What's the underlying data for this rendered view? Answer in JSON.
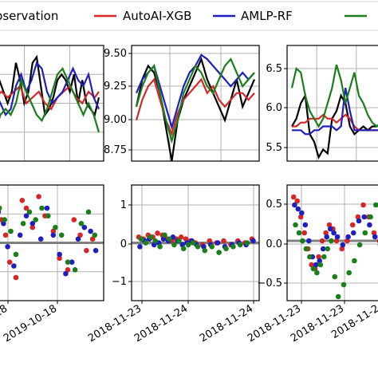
{
  "legend": {
    "items": [
      {
        "label": "Observation",
        "color": "#000000"
      },
      {
        "label": "AutoAI-XGB",
        "color": "#d62728"
      },
      {
        "label": "AMLP-RF",
        "color": "#1f1fbf"
      },
      {
        "label": "",
        "color": "#1a7f1a"
      }
    ]
  },
  "chart_data": [
    {
      "panel": "top-left",
      "type": "line",
      "yticks": [],
      "ylim": [
        8.6,
        9.6
      ],
      "series": [
        {
          "name": "Observation",
          "color": "#000000",
          "x": [
            0,
            0.04,
            0.08,
            0.12,
            0.16,
            0.2,
            0.24,
            0.28,
            0.32,
            0.36,
            0.4,
            0.44,
            0.48,
            0.52,
            0.56,
            0.6,
            0.64,
            0.68,
            0.72,
            0.76,
            0.8,
            0.84,
            0.88,
            0.92,
            0.96,
            1.0
          ],
          "y": [
            9.05,
            9.3,
            9.2,
            9.1,
            9.2,
            9.45,
            9.3,
            9.1,
            9.2,
            9.45,
            9.5,
            9.25,
            9.0,
            9.05,
            9.15,
            9.3,
            9.35,
            9.3,
            9.2,
            9.35,
            9.1,
            9.3,
            9.1,
            9.05,
            9.0,
            9.15
          ]
        },
        {
          "name": "AutoAI-XGB",
          "color": "#d62728",
          "x": [
            0,
            0.06,
            0.12,
            0.18,
            0.24,
            0.3,
            0.36,
            0.42,
            0.48,
            0.54,
            0.6,
            0.66,
            0.72,
            0.78,
            0.84,
            0.9,
            0.96,
            1.0
          ],
          "y": [
            9.15,
            9.2,
            9.15,
            9.2,
            9.25,
            9.1,
            9.15,
            9.2,
            9.1,
            9.05,
            9.15,
            9.2,
            9.25,
            9.15,
            9.1,
            9.2,
            9.15,
            9.2
          ]
        },
        {
          "name": "AMLP-RF",
          "color": "#1f1fbf",
          "x": [
            0,
            0.05,
            0.1,
            0.15,
            0.2,
            0.25,
            0.3,
            0.35,
            0.4,
            0.45,
            0.5,
            0.55,
            0.6,
            0.65,
            0.7,
            0.75,
            0.8,
            0.85,
            0.9,
            0.95,
            1.0
          ],
          "y": [
            9.2,
            9.1,
            9.0,
            9.05,
            9.25,
            9.35,
            9.2,
            9.3,
            9.45,
            9.4,
            9.2,
            9.1,
            9.15,
            9.2,
            9.3,
            9.4,
            9.3,
            9.25,
            9.35,
            9.15,
            9.05
          ]
        },
        {
          "name": "",
          "color": "#1a7f1a",
          "x": [
            0,
            0.05,
            0.1,
            0.15,
            0.2,
            0.25,
            0.3,
            0.35,
            0.4,
            0.45,
            0.5,
            0.55,
            0.6,
            0.65,
            0.7,
            0.75,
            0.8,
            0.85,
            0.9,
            0.95,
            1.0
          ],
          "y": [
            8.85,
            9.0,
            9.05,
            9.0,
            9.1,
            9.3,
            9.2,
            9.1,
            9.0,
            8.95,
            9.05,
            9.2,
            9.35,
            9.4,
            9.3,
            9.2,
            9.1,
            9.0,
            9.1,
            9.0,
            8.85
          ]
        }
      ]
    },
    {
      "panel": "top-center",
      "type": "line",
      "yticks": [
        "8.75",
        "9.00",
        "9.25",
        "9.50"
      ],
      "ylim": [
        8.7,
        9.55
      ],
      "series": [
        {
          "name": "Observation",
          "color": "#000000",
          "x": [
            0,
            0.05,
            0.1,
            0.15,
            0.2,
            0.25,
            0.3,
            0.35,
            0.4,
            0.45,
            0.5,
            0.55,
            0.6,
            0.65,
            0.7,
            0.75,
            0.8,
            0.85,
            0.9,
            0.95,
            1.0
          ],
          "y": [
            9.1,
            9.3,
            9.4,
            9.35,
            9.2,
            8.95,
            8.7,
            9.0,
            9.15,
            9.25,
            9.35,
            9.45,
            9.3,
            9.2,
            9.1,
            9.0,
            9.15,
            9.3,
            9.1,
            9.2,
            9.3
          ]
        },
        {
          "name": "AutoAI-XGB",
          "color": "#d62728",
          "x": [
            0,
            0.05,
            0.1,
            0.15,
            0.2,
            0.25,
            0.3,
            0.35,
            0.4,
            0.45,
            0.5,
            0.55,
            0.6,
            0.65,
            0.7,
            0.75,
            0.8,
            0.85,
            0.9,
            0.95,
            1.0
          ],
          "y": [
            9.0,
            9.15,
            9.25,
            9.3,
            9.15,
            9.0,
            8.9,
            9.05,
            9.15,
            9.2,
            9.25,
            9.3,
            9.2,
            9.25,
            9.15,
            9.1,
            9.15,
            9.2,
            9.2,
            9.15,
            9.2
          ]
        },
        {
          "name": "AMLP-RF",
          "color": "#1f1fbf",
          "x": [
            0,
            0.05,
            0.1,
            0.15,
            0.2,
            0.25,
            0.3,
            0.35,
            0.4,
            0.45,
            0.5,
            0.55,
            0.6,
            0.65,
            0.7,
            0.75,
            0.8,
            0.85,
            0.9,
            0.95,
            1.0
          ],
          "y": [
            9.2,
            9.3,
            9.35,
            9.4,
            9.25,
            9.1,
            8.95,
            9.1,
            9.25,
            9.35,
            9.4,
            9.48,
            9.45,
            9.4,
            9.35,
            9.3,
            9.25,
            9.3,
            9.35,
            9.3,
            9.35
          ]
        },
        {
          "name": "",
          "color": "#1a7f1a",
          "x": [
            0,
            0.05,
            0.1,
            0.15,
            0.2,
            0.25,
            0.3,
            0.35,
            0.4,
            0.45,
            0.5,
            0.55,
            0.6,
            0.65,
            0.7,
            0.75,
            0.8,
            0.85,
            0.9,
            0.95,
            1.0
          ],
          "y": [
            9.1,
            9.25,
            9.35,
            9.4,
            9.2,
            9.0,
            8.85,
            9.0,
            9.2,
            9.3,
            9.4,
            9.35,
            9.25,
            9.2,
            9.3,
            9.4,
            9.45,
            9.35,
            9.25,
            9.3,
            9.35
          ]
        }
      ]
    },
    {
      "panel": "top-right",
      "type": "line",
      "yticks": [
        "5.5",
        "6.0",
        "6.5"
      ],
      "ylim": [
        5.35,
        6.85
      ],
      "series": [
        {
          "name": "Observation",
          "color": "#000000",
          "x": [
            0,
            0.05,
            0.1,
            0.15,
            0.2,
            0.25,
            0.3,
            0.35,
            0.4,
            0.45,
            0.5,
            0.55,
            0.6,
            0.65,
            0.7,
            0.75,
            0.8,
            0.85,
            0.9,
            0.95,
            1.0
          ],
          "y": [
            5.8,
            5.9,
            6.1,
            6.2,
            5.7,
            5.6,
            5.4,
            5.5,
            5.45,
            5.9,
            6.0,
            6.2,
            6.1,
            5.8,
            5.7,
            5.75,
            5.8,
            5.75,
            5.8,
            5.8,
            5.85
          ]
        },
        {
          "name": "AutoAI-XGB",
          "color": "#d62728",
          "x": [
            0,
            0.05,
            0.1,
            0.15,
            0.2,
            0.25,
            0.3,
            0.35,
            0.4,
            0.45,
            0.5,
            0.55,
            0.6,
            0.65,
            0.7,
            0.75,
            0.8,
            0.85,
            0.9,
            0.95,
            1.0
          ],
          "y": [
            5.8,
            5.8,
            5.85,
            5.85,
            5.9,
            5.9,
            5.9,
            5.95,
            5.9,
            5.9,
            5.85,
            5.9,
            5.95,
            5.9,
            5.8,
            5.75,
            5.75,
            5.75,
            5.75,
            5.75,
            5.75
          ]
        },
        {
          "name": "AMLP-RF",
          "color": "#1f1fbf",
          "x": [
            0,
            0.05,
            0.1,
            0.15,
            0.2,
            0.25,
            0.3,
            0.35,
            0.4,
            0.45,
            0.5,
            0.55,
            0.6,
            0.65,
            0.7,
            0.75,
            0.8,
            0.85,
            0.9,
            0.95,
            1.0
          ],
          "y": [
            5.75,
            5.75,
            5.75,
            5.7,
            5.7,
            5.75,
            5.75,
            5.8,
            5.8,
            5.8,
            5.75,
            5.8,
            6.3,
            6.0,
            5.75,
            5.75,
            5.75,
            5.75,
            5.75,
            5.75,
            5.75
          ]
        },
        {
          "name": "",
          "color": "#1a7f1a",
          "x": [
            0,
            0.05,
            0.1,
            0.15,
            0.2,
            0.25,
            0.3,
            0.35,
            0.4,
            0.45,
            0.5,
            0.55,
            0.6,
            0.65,
            0.7,
            0.75,
            0.8,
            0.85,
            0.9,
            0.95,
            1.0
          ],
          "y": [
            6.3,
            6.55,
            6.5,
            6.2,
            6.0,
            5.9,
            5.8,
            5.9,
            6.1,
            6.3,
            6.6,
            6.4,
            6.1,
            6.3,
            6.5,
            6.2,
            6.1,
            5.95,
            5.85,
            5.8,
            5.85
          ]
        }
      ]
    },
    {
      "panel": "bottom-left",
      "type": "scatter",
      "yticks": [],
      "ylim": [
        -1.5,
        1.5
      ],
      "xticks": [
        "2019-10-18",
        "2019-10-18"
      ],
      "hline": 0,
      "series": [
        {
          "name": "AutoAI-XGB",
          "color": "#d62728",
          "x": [
            0.02,
            0.06,
            0.1,
            0.14,
            0.2,
            0.26,
            0.3,
            0.36,
            0.42,
            0.48,
            0.56,
            0.62,
            0.7,
            0.76,
            0.82,
            0.88,
            0.94
          ],
          "y": [
            1.2,
            0.6,
            0.2,
            -0.5,
            -0.9,
            1.1,
            0.9,
            0.4,
            1.2,
            0.7,
            0.3,
            -0.4,
            -0.7,
            0.6,
            0.2,
            -0.2,
            0.1
          ]
        },
        {
          "name": "AMLP-RF",
          "color": "#1f1fbf",
          "x": [
            0.03,
            0.08,
            0.12,
            0.18,
            0.24,
            0.3,
            0.36,
            0.44,
            0.5,
            0.56,
            0.62,
            0.68,
            0.74,
            0.8,
            0.86,
            0.92,
            0.97
          ],
          "y": [
            0.8,
            0.5,
            -0.1,
            -0.6,
            0.2,
            0.7,
            0.5,
            0.1,
            0.9,
            0.2,
            -0.3,
            -0.8,
            -0.5,
            0.1,
            0.4,
            0.3,
            -0.2
          ]
        },
        {
          "name": "",
          "color": "#1a7f1a",
          "x": [
            0.04,
            0.09,
            0.15,
            0.2,
            0.27,
            0.33,
            0.39,
            0.45,
            0.51,
            0.58,
            0.64,
            0.7,
            0.77,
            0.83,
            0.9,
            0.96
          ],
          "y": [
            0.9,
            0.6,
            0.3,
            -0.3,
            0.5,
            0.8,
            0.6,
            0.9,
            0.7,
            0.4,
            0.2,
            -0.5,
            -0.7,
            0.5,
            0.8,
            0.2
          ]
        }
      ]
    },
    {
      "panel": "bottom-center",
      "type": "scatter",
      "yticks": [
        "−1",
        "0",
        "1"
      ],
      "ylim": [
        -1.5,
        1.5
      ],
      "xticks": [
        "2018-11-23",
        "2018-11-24",
        "2018-11-24"
      ],
      "hline": 0,
      "series": [
        {
          "name": "AutoAI-XGB",
          "color": "#d62728",
          "x": [
            0.02,
            0.06,
            0.1,
            0.14,
            0.18,
            0.22,
            0.26,
            0.3,
            0.34,
            0.38,
            0.42,
            0.46,
            0.5,
            0.56,
            0.62,
            0.68,
            0.74,
            0.8,
            0.86,
            0.92,
            0.98
          ],
          "y": [
            0.15,
            0.1,
            0.2,
            0.15,
            0.25,
            0.2,
            0.1,
            0.05,
            0.1,
            0.15,
            0.1,
            0.05,
            0.0,
            -0.05,
            0.05,
            0.0,
            0.05,
            -0.05,
            0.05,
            0.0,
            0.1
          ]
        },
        {
          "name": "AMLP-RF",
          "color": "#1f1fbf",
          "x": [
            0.03,
            0.07,
            0.11,
            0.15,
            0.19,
            0.23,
            0.27,
            0.31,
            0.35,
            0.39,
            0.43,
            0.47,
            0.51,
            0.57,
            0.63,
            0.69,
            0.75,
            0.81,
            0.87,
            0.93,
            0.99
          ],
          "y": [
            -0.1,
            0.05,
            0.1,
            -0.05,
            0.0,
            0.1,
            0.05,
            0.15,
            0.05,
            -0.05,
            0.0,
            0.05,
            -0.05,
            -0.1,
            -0.05,
            0.0,
            -0.1,
            -0.05,
            0.0,
            -0.05,
            0.05
          ]
        },
        {
          "name": "",
          "color": "#1a7f1a",
          "x": [
            0.04,
            0.08,
            0.12,
            0.16,
            0.2,
            0.24,
            0.28,
            0.32,
            0.36,
            0.4,
            0.44,
            0.48,
            0.52,
            0.58,
            0.64,
            0.7,
            0.76,
            0.82,
            0.88,
            0.94
          ],
          "y": [
            0.1,
            0.0,
            0.15,
            0.05,
            -0.1,
            0.2,
            0.1,
            -0.05,
            0.05,
            -0.15,
            -0.05,
            0.0,
            -0.1,
            -0.2,
            -0.1,
            -0.25,
            -0.15,
            -0.1,
            -0.05,
            0.0
          ]
        }
      ]
    },
    {
      "panel": "bottom-right",
      "type": "scatter",
      "yticks": [
        "−0.5",
        "0.0",
        "0.5"
      ],
      "ylim": [
        -0.75,
        0.7
      ],
      "xticks": [
        "2018-11-23",
        "2018-11-23",
        "2018-11-2"
      ],
      "hline": 0,
      "series": [
        {
          "name": "AutoAI-XGB",
          "color": "#d62728",
          "x": [
            0.02,
            0.06,
            0.1,
            0.14,
            0.18,
            0.22,
            0.26,
            0.3,
            0.34,
            0.38,
            0.42,
            0.46,
            0.5,
            0.56,
            0.62,
            0.68,
            0.74,
            0.8,
            0.86,
            0.92,
            0.98
          ],
          "y": [
            0.55,
            0.5,
            0.3,
            0.1,
            -0.1,
            -0.3,
            -0.35,
            -0.2,
            0.0,
            0.1,
            0.2,
            0.15,
            0.0,
            -0.1,
            0.0,
            0.2,
            0.3,
            0.45,
            0.3,
            0.1,
            0.0
          ]
        },
        {
          "name": "AMLP-RF",
          "color": "#1f1fbf",
          "x": [
            0.03,
            0.07,
            0.11,
            0.15,
            0.19,
            0.23,
            0.27,
            0.31,
            0.35,
            0.39,
            0.43,
            0.47,
            0.51,
            0.57,
            0.63,
            0.69,
            0.75,
            0.81,
            0.87,
            0.93,
            0.99
          ],
          "y": [
            0.45,
            0.4,
            0.35,
            0.2,
            0.0,
            -0.2,
            -0.3,
            -0.25,
            -0.1,
            0.05,
            0.15,
            0.1,
            0.05,
            -0.05,
            0.05,
            0.1,
            0.25,
            0.3,
            0.2,
            0.05,
            -0.05
          ]
        },
        {
          "name": "",
          "color": "#1a7f1a",
          "x": [
            0.04,
            0.08,
            0.12,
            0.16,
            0.2,
            0.24,
            0.28,
            0.32,
            0.36,
            0.4,
            0.44,
            0.48,
            0.52,
            0.58,
            0.64,
            0.7,
            0.76,
            0.82,
            0.88,
            0.94
          ],
          "y": [
            0.2,
            0.1,
            0.0,
            -0.1,
            -0.2,
            -0.35,
            -0.4,
            -0.3,
            -0.2,
            -0.1,
            0.0,
            -0.45,
            -0.7,
            -0.55,
            -0.4,
            -0.25,
            -0.05,
            0.1,
            0.3,
            0.45
          ]
        }
      ]
    }
  ]
}
